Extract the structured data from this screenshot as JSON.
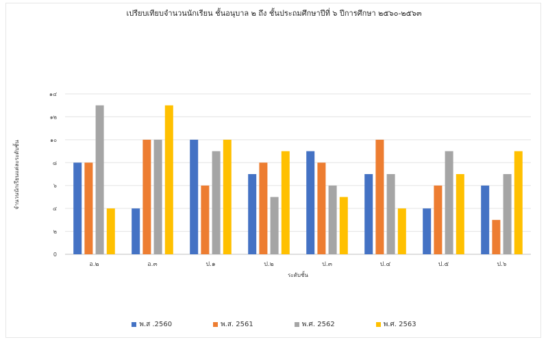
{
  "chart_data": {
    "type": "bar",
    "title": "เปรียบเทียบจำนวนนักเรียน ชั้นอนุบาล ๒ ถึง ชั้นประถมศึกษาปีที่ ๖ ปีการศึกษา ๒๕๖๐-๒๕๖๓",
    "xlabel": "ระดับชั้น",
    "ylabel": "จำนวนนักเรียนแต่ละระดับชั้น",
    "categories": [
      "อ.๒",
      "อ.๓",
      "ป.๑",
      "ป.๒",
      "ป.๓",
      "ป.๔",
      "ป.๕",
      "ป.๖"
    ],
    "yticks": [
      "0",
      "๒",
      "๔",
      "๖",
      "๘",
      "๑๐",
      "๑๒",
      "๑๔"
    ],
    "ylim": [
      0,
      14
    ],
    "grid": true,
    "legend_position": "bottom",
    "series": [
      {
        "name": "พ.ส .2560",
        "color": "#4472c4",
        "values": [
          8,
          4,
          10,
          7,
          9,
          7,
          4,
          6
        ]
      },
      {
        "name": "พ.ส. 2561",
        "color": "#ed7d31",
        "values": [
          8,
          10,
          6,
          8,
          8,
          10,
          6,
          3
        ]
      },
      {
        "name": "พ.ศ. 2562",
        "color": "#a5a5a5",
        "values": [
          13,
          10,
          9,
          5,
          6,
          7,
          9,
          7
        ]
      },
      {
        "name": "พ.ศ. 2563",
        "color": "#ffc000",
        "values": [
          4,
          13,
          10,
          9,
          5,
          4,
          7,
          9
        ]
      }
    ]
  }
}
